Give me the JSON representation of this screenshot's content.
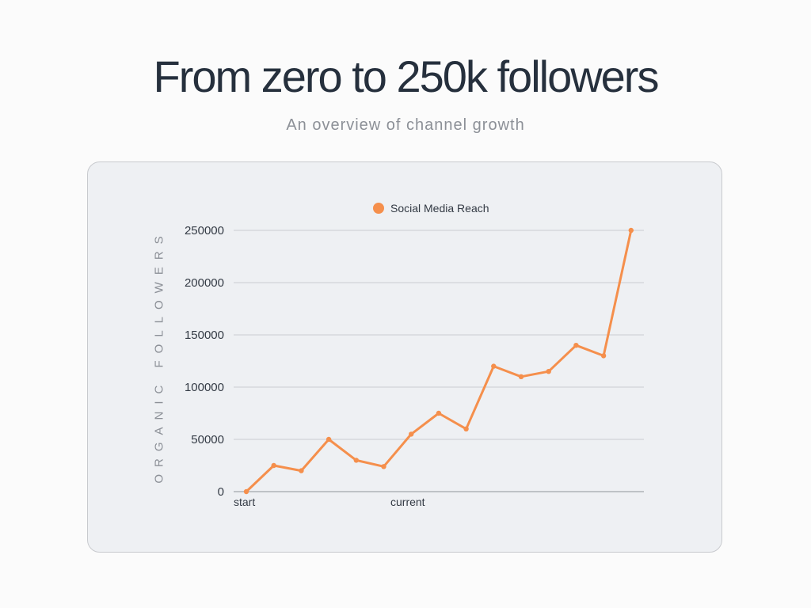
{
  "header": {
    "title": "From zero to 250k followers",
    "subtitle": "An overview of channel growth"
  },
  "colors": {
    "accent": "#f58f4c",
    "grid": "#c9ccd1",
    "card_bg": "#eef0f3",
    "title": "#26303d",
    "muted": "#8c9097"
  },
  "chart_data": {
    "type": "line",
    "title": "",
    "xlabel": "",
    "ylabel": "ORGANIC FOLLOWERS",
    "ylim": [
      0,
      250000
    ],
    "yticks": [
      0,
      50000,
      100000,
      150000,
      200000,
      250000
    ],
    "grid": true,
    "legend_position": "top-center",
    "x_tick_labels": [
      {
        "index": 0,
        "label": "start"
      },
      {
        "index": 6,
        "label": "current"
      }
    ],
    "series": [
      {
        "name": "Social Media Reach",
        "color": "#f58f4c",
        "values": [
          0,
          25000,
          20000,
          50000,
          30000,
          24000,
          55000,
          75000,
          60000,
          120000,
          110000,
          115000,
          140000,
          130000,
          250000
        ]
      }
    ]
  }
}
